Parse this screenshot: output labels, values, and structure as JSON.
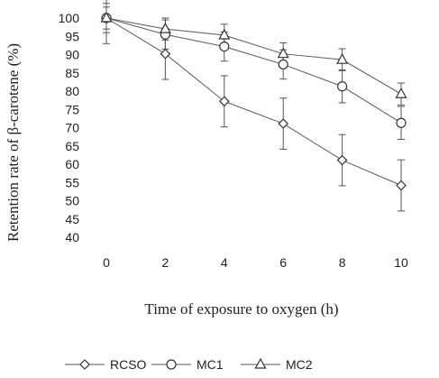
{
  "chart_data": {
    "type": "line",
    "xlabel": "Time of exposure to oxygen (h)",
    "ylabel": "Retention rate of β-carotene (%)",
    "x": [
      0,
      2,
      4,
      6,
      8,
      10
    ],
    "xlim": [
      0,
      10
    ],
    "ylim": [
      40,
      100
    ],
    "yticks": [
      40,
      45,
      50,
      55,
      60,
      65,
      70,
      75,
      80,
      85,
      90,
      95,
      100
    ],
    "grid": false,
    "legend_position": "bottom",
    "series": [
      {
        "name": "RCSO",
        "marker": "diamond",
        "values": [
          100,
          90.2,
          77.2,
          71.1,
          61.1,
          54.2
        ],
        "errors": [
          7,
          7,
          7,
          7,
          7,
          7
        ]
      },
      {
        "name": "MC1",
        "marker": "circle",
        "values": [
          100,
          95.5,
          92.2,
          87.3,
          81.3,
          71.3
        ],
        "errors": [
          4,
          4,
          4,
          4,
          4.5,
          4.5
        ]
      },
      {
        "name": "MC2",
        "marker": "triangle",
        "values": [
          100,
          97,
          95.3,
          90.2,
          88.6,
          79.2
        ],
        "errors": [
          3,
          3,
          3,
          3,
          3,
          3
        ]
      }
    ]
  }
}
